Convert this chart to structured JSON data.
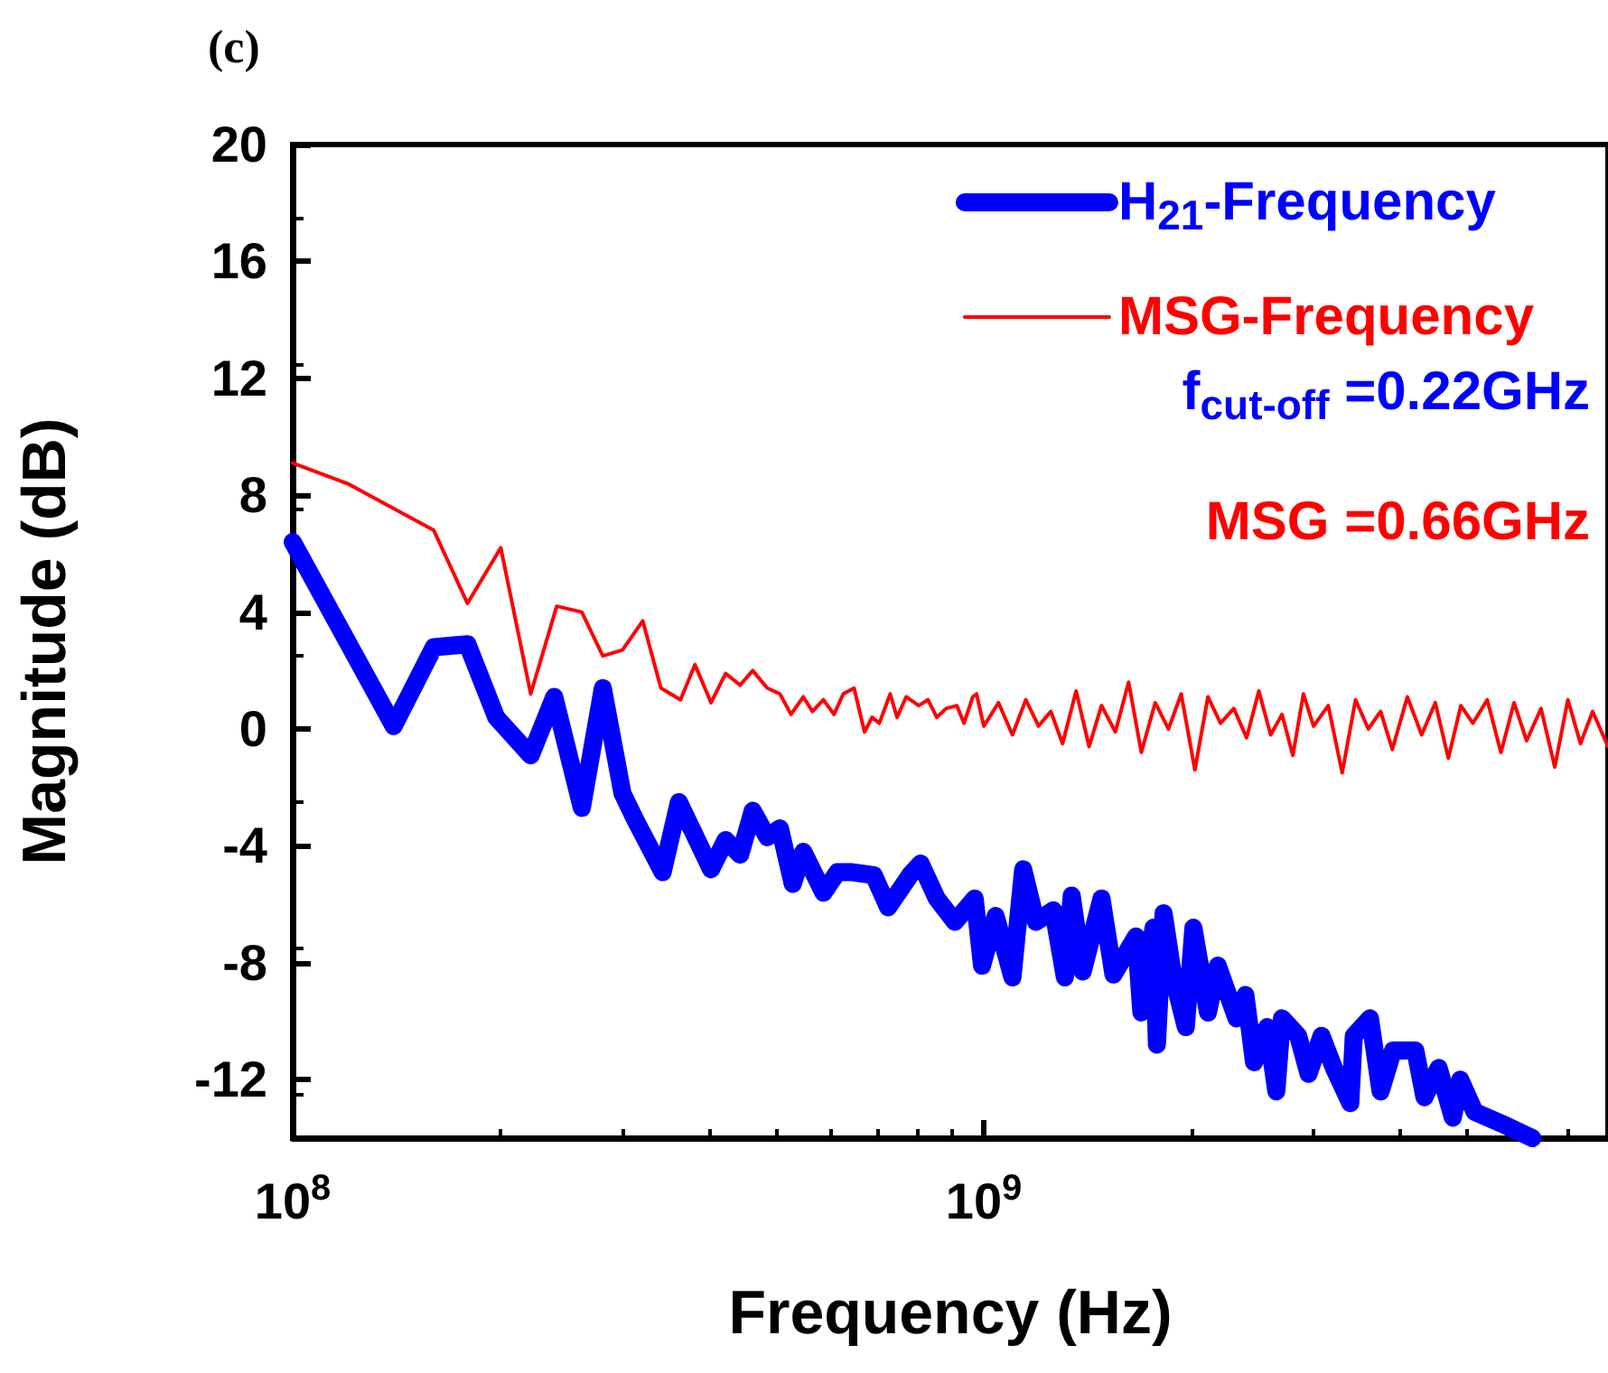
{
  "chart_data": {
    "type": "line",
    "title": "(c)",
    "xlabel": "Frequency (Hz)",
    "ylabel": "Magnitude (dB)",
    "log": "x",
    "xlim": [
      100000000,
      8000000000
    ],
    "xticks": [
      {
        "value": 100000000,
        "label": "10$^{8}$"
      },
      {
        "value": 1000000000,
        "label": "10$^{9}$"
      }
    ],
    "ylim": [
      -14,
      20
    ],
    "yticks": [
      -12,
      -8,
      -4,
      0,
      4,
      8,
      12,
      16,
      20
    ],
    "grid": false,
    "legend": "top right",
    "marker": "none",
    "line_style": "solid",
    "annotations": [
      "f$_{cut-off}$ =0.22GHz",
      "MSG =0.66GHz"
    ],
    "series": [
      {
        "name": "H$_{21}$-Frequency",
        "color": "#0000ff",
        "x": [
          100000000,
          140000000,
          160000000,
          179000000,
          197000000,
          221000000,
          239000000,
          262000000,
          281000000,
          300000000,
          313000000,
          343000000,
          362000000,
          403000000,
          423000000,
          444000000,
          463000000,
          486000000,
          507000000,
          529000000,
          548000000,
          586000000,
          614000000,
          645000000,
          693000000,
          727000000,
          782000000,
          810000000,
          855000000,
          908000000,
          970000000,
          994000000,
          1040000000,
          1100000000,
          1140000000,
          1190000000,
          1260000000,
          1310000000,
          1340000000,
          1390000000,
          1480000000,
          1540000000,
          1660000000,
          1690000000,
          1760000000,
          1780000000,
          1820000000,
          1880000000,
          1960000000,
          2010000000,
          2110000000,
          2180000000,
          2320000000,
          2390000000,
          2460000000,
          2570000000,
          2650000000,
          2700000000,
          2850000000,
          2950000000,
          3080000000,
          3210000000,
          3390000000,
          3430000000,
          3620000000,
          3750000000,
          3910000000,
          4210000000,
          4340000000,
          4550000000,
          4770000000,
          4890000000,
          5130000000,
          5610000000,
          6220000000
        ],
        "values": [
          6.4,
          0.1,
          2.8,
          2.9,
          0.4,
          -0.9,
          1.1,
          -2.7,
          1.4,
          -2.2,
          -3.1,
          -4.9,
          -2.5,
          -4.8,
          -3.8,
          -4.3,
          -2.8,
          -3.7,
          -3.4,
          -5.3,
          -4.2,
          -5.6,
          -4.9,
          -4.9,
          -5.0,
          -6.1,
          -5.0,
          -4.6,
          -5.8,
          -6.6,
          -5.8,
          -8.1,
          -6.4,
          -8.5,
          -4.8,
          -6.6,
          -6.2,
          -8.5,
          -5.7,
          -8.3,
          -5.8,
          -8.4,
          -7.1,
          -9.7,
          -6.8,
          -10.8,
          -6.3,
          -8.5,
          -10.2,
          -6.8,
          -9.7,
          -8.1,
          -9.9,
          -9.1,
          -11.4,
          -10.2,
          -12.4,
          -9.9,
          -10.5,
          -11.8,
          -10.5,
          -11.6,
          -12.8,
          -10.5,
          -9.9,
          -12.4,
          -11.0,
          -11.0,
          -12.6,
          -11.6,
          -13.3,
          -12.0,
          -13.1,
          -13.5,
          -14
        ]
      },
      {
        "name": "MSG-Frequency",
        "color": "#ff0000",
        "x": [
          100000000,
          120000000,
          160000000,
          179000000,
          200000000,
          221000000,
          241000000,
          262000000,
          281000000,
          300000000,
          321000000,
          341000000,
          364000000,
          382000000,
          403000000,
          423000000,
          444000000,
          463000000,
          486000000,
          507000000,
          526000000,
          548000000,
          565000000,
          586000000,
          607000000,
          626000000,
          649000000,
          672000000,
          689000000,
          706000000,
          732000000,
          749000000,
          772000000,
          805000000,
          830000000,
          855000000,
          882000000,
          914000000,
          936000000,
          964000000,
          976000000,
          1000000000,
          1050000000,
          1100000000,
          1150000000,
          1200000000,
          1250000000,
          1300000000,
          1360000000,
          1420000000,
          1480000000,
          1550000000,
          1620000000,
          1690000000,
          1770000000,
          1850000000,
          1930000000,
          2020000000,
          2110000000,
          2200000000,
          2300000000,
          2400000000,
          2500000000,
          2600000000,
          2700000000,
          2800000000,
          2900000000,
          3000000000,
          3150000000,
          3300000000,
          3450000000,
          3600000000,
          3750000000,
          3900000000,
          4100000000,
          4300000000,
          4500000000,
          4700000000,
          4900000000,
          5100000000,
          5350000000,
          5600000000,
          5850000000,
          6100000000,
          6400000000,
          6700000000,
          7000000000,
          7300000000,
          7600000000,
          8000000000
        ],
        "values": [
          9.1,
          8.4,
          6.8,
          4.3,
          6.2,
          1.2,
          4.2,
          4.0,
          2.5,
          2.7,
          3.7,
          1.4,
          1.0,
          2.2,
          0.9,
          1.9,
          1.5,
          2.0,
          1.4,
          1.2,
          0.5,
          1.1,
          0.6,
          1.0,
          0.5,
          1.2,
          1.4,
          -0.1,
          0.4,
          0.2,
          1.2,
          0.4,
          1.1,
          0.8,
          1.0,
          0.4,
          0.7,
          0.8,
          0.2,
          1.1,
          1.2,
          0.1,
          0.9,
          -0.2,
          1.0,
          0.1,
          0.6,
          -0.5,
          1.3,
          -0.6,
          0.8,
          -0.1,
          1.6,
          -0.8,
          0.9,
          0.0,
          1.2,
          -1.4,
          1.1,
          0.2,
          0.7,
          -0.3,
          1.3,
          -0.2,
          0.5,
          -0.9,
          1.2,
          0.1,
          0.8,
          -1.5,
          1.0,
          0.0,
          0.6,
          -0.7,
          1.1,
          -0.2,
          0.9,
          -1.0,
          0.8,
          0.2,
          1.0,
          -0.8,
          0.9,
          -0.4,
          0.7,
          -1.3,
          1.0,
          -0.5,
          0.6,
          -0.6
        ]
      }
    ]
  }
}
